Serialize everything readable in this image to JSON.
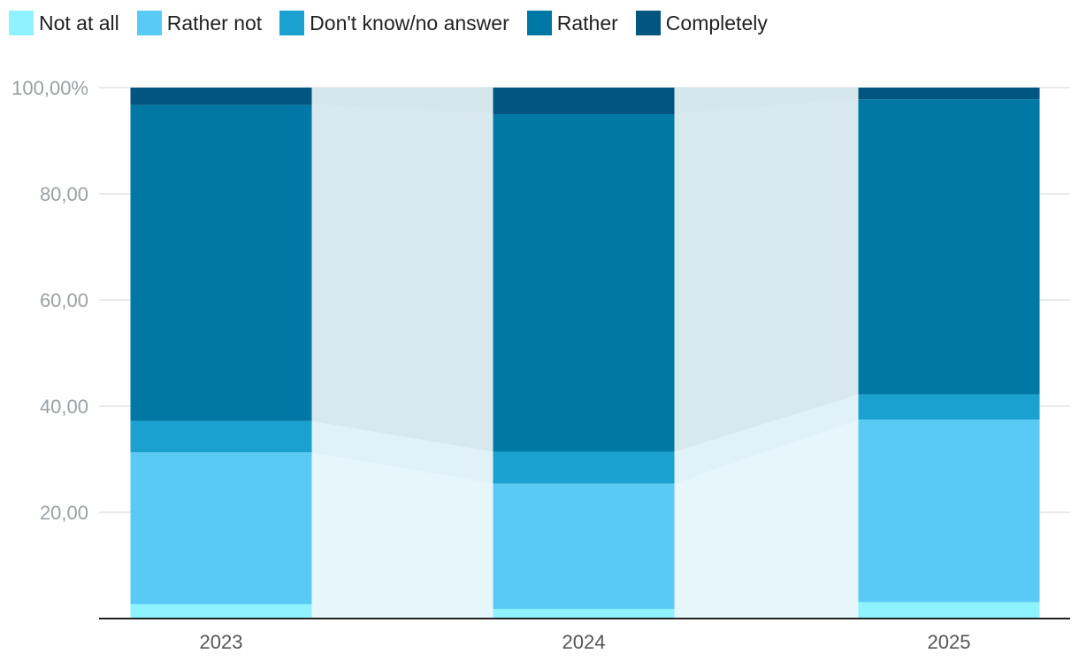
{
  "chart_data": {
    "type": "bar",
    "stacked": true,
    "title": "",
    "xlabel": "",
    "ylabel": "",
    "ylim": [
      0,
      100
    ],
    "grid": true,
    "legend_position": "top-left",
    "categories": [
      "2023",
      "2024",
      "2025"
    ],
    "yticks": [
      {
        "value": 20,
        "label": "20,00"
      },
      {
        "value": 40,
        "label": "40,00"
      },
      {
        "value": 60,
        "label": "60,00"
      },
      {
        "value": 80,
        "label": "80,00"
      },
      {
        "value": 100,
        "label": "100,00%"
      }
    ],
    "series": [
      {
        "name": "Not at all",
        "color": "#8ff3ff",
        "band_color": "#e6f6fb",
        "values": [
          2.7,
          1.8,
          3.1
        ]
      },
      {
        "name": "Rather not",
        "color": "#59caf6",
        "band_color": "#e6f6fb",
        "values": [
          28.6,
          23.6,
          34.4
        ]
      },
      {
        "name": "Don't know/no answer",
        "color": "#1ba1cf",
        "band_color": "#e0f1f8",
        "values": [
          5.9,
          6.0,
          4.7
        ]
      },
      {
        "name": "Rather",
        "color": "#0078a5",
        "band_color": "#d8e8ef",
        "values": [
          59.5,
          63.6,
          55.6
        ]
      },
      {
        "name": "Completely",
        "color": "#005680",
        "band_color": "#d6e6ed",
        "values": [
          3.3,
          5.0,
          2.2
        ]
      }
    ]
  }
}
